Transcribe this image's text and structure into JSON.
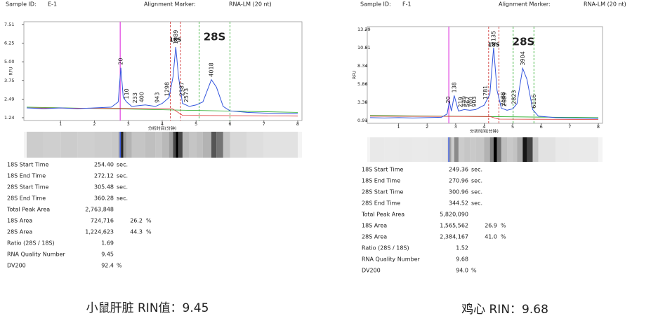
{
  "chart_data": [
    {
      "type": "line",
      "x_label": "分析时间(分钟)",
      "y_label": "RFU",
      "xlim": [
        0,
        8
      ],
      "ylim": [
        1.24,
        7.51
      ],
      "xticks": [
        1,
        2,
        3,
        4,
        5,
        6,
        7,
        8
      ],
      "yticks": [
        1.24,
        2.49,
        3.75,
        {
          "value": 5,
          "label": "5.00"
        },
        6.25,
        7.51
      ],
      "marker_line": {
        "x": 2.76,
        "color": "#e040e0"
      },
      "regions": [
        {
          "label": "18S",
          "color": "#cc2222",
          "start": 4.24,
          "end": 4.54
        },
        {
          "label": "28S",
          "color": "#22aa22",
          "start": 5.09,
          "end": 6.0
        }
      ],
      "series": [
        {
          "color": "#22aa22",
          "x": [
            0,
            8
          ],
          "values": [
            1.95,
            1.6
          ]
        },
        {
          "color": "#dd3333",
          "x": [
            0,
            4.3,
            4.6,
            8
          ],
          "values": [
            1.9,
            1.85,
            1.4,
            1.35
          ]
        },
        {
          "color": "#3355dd",
          "x": [
            0,
            0.5,
            1,
            1.5,
            2,
            2.5,
            2.7,
            2.78,
            2.85,
            2.95,
            3.1,
            3.5,
            3.8,
            4.0,
            4.2,
            4.32,
            4.4,
            4.48,
            4.6,
            4.8,
            5.0,
            5.2,
            5.45,
            5.6,
            5.8,
            6.0,
            6.5,
            7,
            8
          ],
          "values": [
            1.9,
            1.85,
            1.9,
            1.85,
            1.9,
            1.95,
            2.3,
            4.6,
            2.6,
            2.3,
            2.0,
            2.1,
            2.0,
            2.2,
            2.6,
            4.0,
            6.0,
            4.0,
            2.2,
            2.0,
            2.1,
            2.3,
            3.8,
            3.3,
            2.0,
            1.7,
            1.6,
            1.55,
            1.5
          ]
        }
      ],
      "peak_labels": [
        {
          "x": 2.78,
          "label": "20"
        },
        {
          "x": 2.95,
          "label": "110"
        },
        {
          "x": 3.2,
          "label": "233"
        },
        {
          "x": 3.4,
          "label": "400"
        },
        {
          "x": 3.85,
          "label": "943"
        },
        {
          "x": 4.15,
          "label": "1298"
        },
        {
          "x": 4.4,
          "label": "1889"
        },
        {
          "x": 4.58,
          "label": "2387"
        },
        {
          "x": 4.72,
          "label": "2573"
        },
        {
          "x": 5.45,
          "label": "4018"
        }
      ]
    },
    {
      "type": "line",
      "x_label": "分析时间(分钟)",
      "y_label": "RFU",
      "xlim": [
        0,
        8
      ],
      "ylim": [
        0.91,
        13.29
      ],
      "xticks": [
        1,
        2,
        3,
        4,
        5,
        6,
        7,
        8
      ],
      "yticks": [
        0.91,
        3.38,
        5.86,
        8.34,
        10.81,
        13.29
      ],
      "marker_line": {
        "x": 2.76,
        "color": "#e040e0"
      },
      "regions": [
        {
          "label": "18S",
          "color": "#cc2222",
          "start": 4.156,
          "end": 4.516
        },
        {
          "label": "28S",
          "color": "#22aa22",
          "start": 5.016,
          "end": 5.742
        }
      ],
      "series": [
        {
          "color": "#22aa22",
          "x": [
            0,
            8
          ],
          "values": [
            1.6,
            1.3
          ]
        },
        {
          "color": "#dd3333",
          "x": [
            0,
            4.2,
            4.5,
            8
          ],
          "values": [
            1.5,
            1.45,
            1.1,
            1.05
          ]
        },
        {
          "color": "#3355dd",
          "x": [
            0,
            0.5,
            1,
            1.5,
            2,
            2.5,
            2.7,
            2.78,
            2.85,
            2.95,
            3.1,
            3.3,
            3.5,
            3.7,
            4.0,
            4.2,
            4.33,
            4.45,
            4.6,
            4.8,
            5.0,
            5.15,
            5.35,
            5.5,
            5.7,
            5.9,
            6.5,
            7,
            8
          ],
          "values": [
            1.3,
            1.25,
            1.3,
            1.25,
            1.3,
            1.35,
            1.8,
            3.5,
            2.2,
            4.3,
            2.2,
            2.4,
            2.3,
            2.4,
            3.0,
            4.5,
            10.8,
            5.0,
            2.6,
            2.3,
            2.5,
            3.2,
            8.0,
            6.5,
            2.4,
            1.5,
            1.3,
            1.25,
            1.2
          ]
        }
      ],
      "peak_labels": [
        {
          "x": 2.75,
          "label": "20"
        },
        {
          "x": 2.95,
          "label": "138"
        },
        {
          "x": 3.18,
          "label": "219"
        },
        {
          "x": 3.3,
          "label": "449"
        },
        {
          "x": 3.42,
          "label": "567"
        },
        {
          "x": 3.53,
          "label": "700"
        },
        {
          "x": 3.66,
          "label": "903"
        },
        {
          "x": 4.05,
          "label": "1781"
        },
        {
          "x": 4.33,
          "label": "2135"
        },
        {
          "x": 4.67,
          "label": "2588"
        },
        {
          "x": 4.72,
          "label": "2689"
        },
        {
          "x": 5.05,
          "label": "2823"
        },
        {
          "x": 5.35,
          "label": "3904"
        },
        {
          "x": 5.75,
          "label": "6116"
        }
      ]
    }
  ],
  "reports": [
    {
      "header": {
        "sample_id_label": "Sample ID:",
        "sample_id": "E-1",
        "marker_label": "Alignment Marker:",
        "marker": "RNA-LM (20 nt)"
      },
      "table": [
        {
          "label": "18S Start Time",
          "value": "254.40",
          "unit": "sec."
        },
        {
          "label": "18S End Time",
          "value": "272.12",
          "unit": "sec."
        },
        {
          "label": "28S Start Time",
          "value": "305.48",
          "unit": "sec."
        },
        {
          "label": "28S End Time",
          "value": "360.28",
          "unit": "sec."
        },
        {
          "label": "Total Peak Area",
          "value": "2,763,848"
        },
        {
          "label": "18S Area",
          "value": "724,716",
          "pct": "26.2",
          "pct_unit": "%"
        },
        {
          "label": "28S Area",
          "value": "1,224,623",
          "pct": "44.3",
          "pct_unit": "%"
        },
        {
          "label": "Ratio (28S / 18S)",
          "value": "1.69"
        },
        {
          "label": "RNA Quality Number",
          "value": "9.45"
        },
        {
          "label": "DV200",
          "value": "92.4",
          "unit": "%"
        }
      ],
      "caption": "小鼠肝脏 RIN值：9.45"
    },
    {
      "header": {
        "sample_id_label": "Sample ID:",
        "sample_id": "F-1",
        "marker_label": "Alignment Marker:",
        "marker": "RNA-LM (20 nt)"
      },
      "table": [
        {
          "label": "18S Start Time",
          "value": "249.36",
          "unit": "sec."
        },
        {
          "label": "18S End Time",
          "value": "270.96",
          "unit": "sec."
        },
        {
          "label": "28S Start Time",
          "value": "300.96",
          "unit": "sec."
        },
        {
          "label": "28S End Time",
          "value": "344.52",
          "unit": "sec."
        },
        {
          "label": "Total Peak Area",
          "value": "5,820,090"
        },
        {
          "label": "18S Area",
          "value": "1,565,562",
          "pct": "26.9",
          "pct_unit": "%"
        },
        {
          "label": "28S Area",
          "value": "2,384,167",
          "pct": "41.0",
          "pct_unit": "%"
        },
        {
          "label": "Ratio (28S / 18S)",
          "value": "1.52"
        },
        {
          "label": "RNA Quality Number",
          "value": "9.68"
        },
        {
          "label": "DV200",
          "value": "94.0",
          "unit": "%"
        }
      ],
      "caption": "鸡心 RIN：9.68"
    }
  ]
}
